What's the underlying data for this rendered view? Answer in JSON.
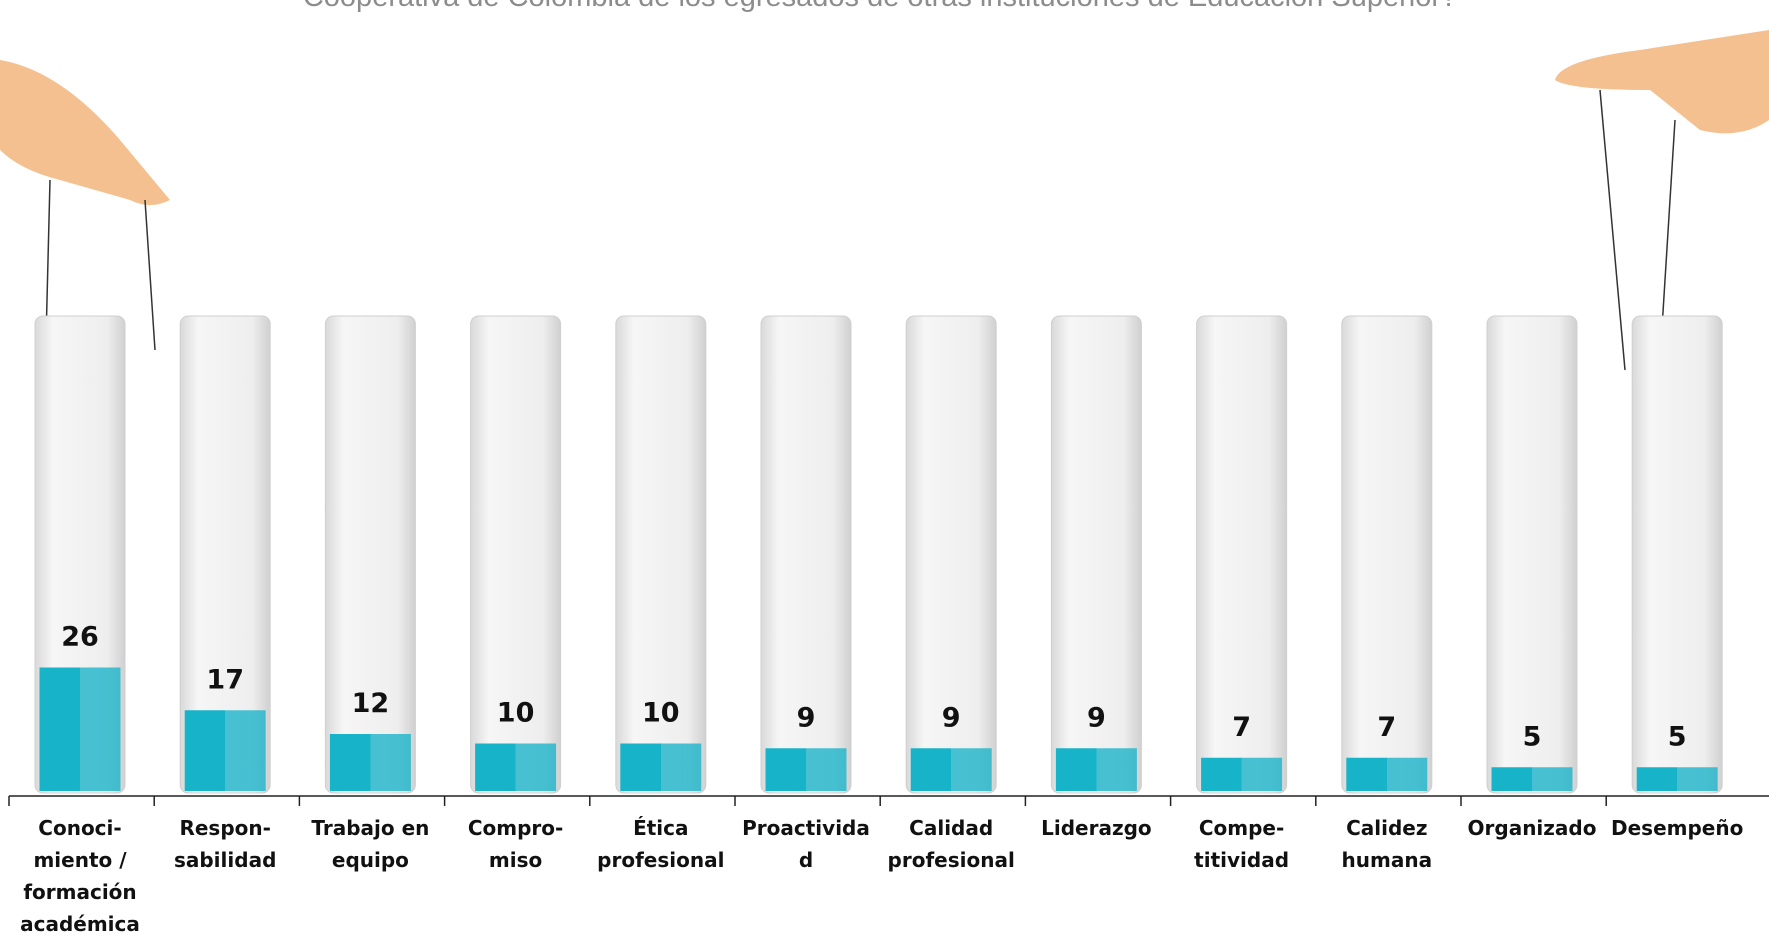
{
  "chart_data": {
    "type": "bar",
    "title": "Cooperativa de Colombia de los egresados de otras instituciones de Educación Superior?",
    "categories": [
      "Conoci-\nmiento /\nformación\nacadémica",
      "Respon-\nsabilidad",
      "Trabajo en\nequipo",
      "Compro-\nmiso",
      "Ética\nprofesional",
      "Proactivida\nd",
      "Calidad\nprofesional",
      "Liderazgo",
      "Compe-\ntitividad",
      "Calidez\nhumana",
      "Organizado",
      "Desempeño"
    ],
    "values": [
      26,
      17,
      12,
      10,
      10,
      9,
      9,
      9,
      7,
      7,
      5,
      5
    ],
    "color": "#17b3c9",
    "ylim": [
      0,
      100
    ]
  }
}
